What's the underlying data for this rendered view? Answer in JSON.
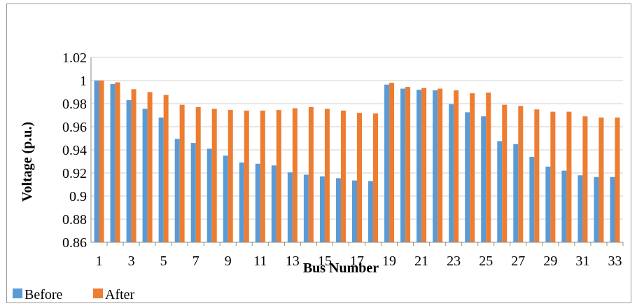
{
  "chart_data": {
    "type": "bar",
    "title": "",
    "xlabel": "Bus Number",
    "ylabel": "Voltage  (p.u.)",
    "ylim": [
      0.86,
      1.02
    ],
    "ytick_step": 0.02,
    "yticks": [
      "0.86",
      "0.88",
      "0.9",
      "0.92",
      "0.94",
      "0.96",
      "0.98",
      "1",
      "1.02"
    ],
    "categories": [
      "1",
      "2",
      "3",
      "4",
      "5",
      "6",
      "7",
      "8",
      "9",
      "10",
      "11",
      "12",
      "13",
      "14",
      "15",
      "16",
      "17",
      "18",
      "19",
      "20",
      "21",
      "22",
      "23",
      "24",
      "25",
      "26",
      "27",
      "28",
      "29",
      "30",
      "31",
      "32",
      "33"
    ],
    "xtick_labels": [
      "1",
      "",
      "3",
      "",
      "5",
      "",
      "7",
      "",
      "9",
      "",
      "11",
      "",
      "13",
      "",
      "15",
      "",
      "17",
      "",
      "19",
      "",
      "21",
      "",
      "23",
      "",
      "25",
      "",
      "27",
      "",
      "29",
      "",
      "31",
      "",
      "33"
    ],
    "grid": true,
    "legend_position": "bottom-left",
    "series": [
      {
        "name": "Before",
        "color": "#5b9bd5",
        "values": [
          1.0,
          0.997,
          0.983,
          0.9755,
          0.968,
          0.9495,
          0.946,
          0.941,
          0.935,
          0.929,
          0.928,
          0.9265,
          0.9205,
          0.9185,
          0.917,
          0.9155,
          0.9135,
          0.913,
          0.9965,
          0.993,
          0.992,
          0.9915,
          0.9795,
          0.9725,
          0.969,
          0.9475,
          0.945,
          0.934,
          0.9255,
          0.922,
          0.918,
          0.9165,
          0.9165
        ]
      },
      {
        "name": "After",
        "color": "#ed7d31",
        "values": [
          1.0,
          0.9985,
          0.9925,
          0.99,
          0.9875,
          0.979,
          0.977,
          0.9755,
          0.9745,
          0.974,
          0.974,
          0.9745,
          0.976,
          0.977,
          0.9755,
          0.974,
          0.972,
          0.9715,
          0.998,
          0.9945,
          0.9935,
          0.993,
          0.9915,
          0.989,
          0.9895,
          0.979,
          0.978,
          0.975,
          0.973,
          0.973,
          0.969,
          0.968,
          0.968
        ]
      }
    ]
  }
}
